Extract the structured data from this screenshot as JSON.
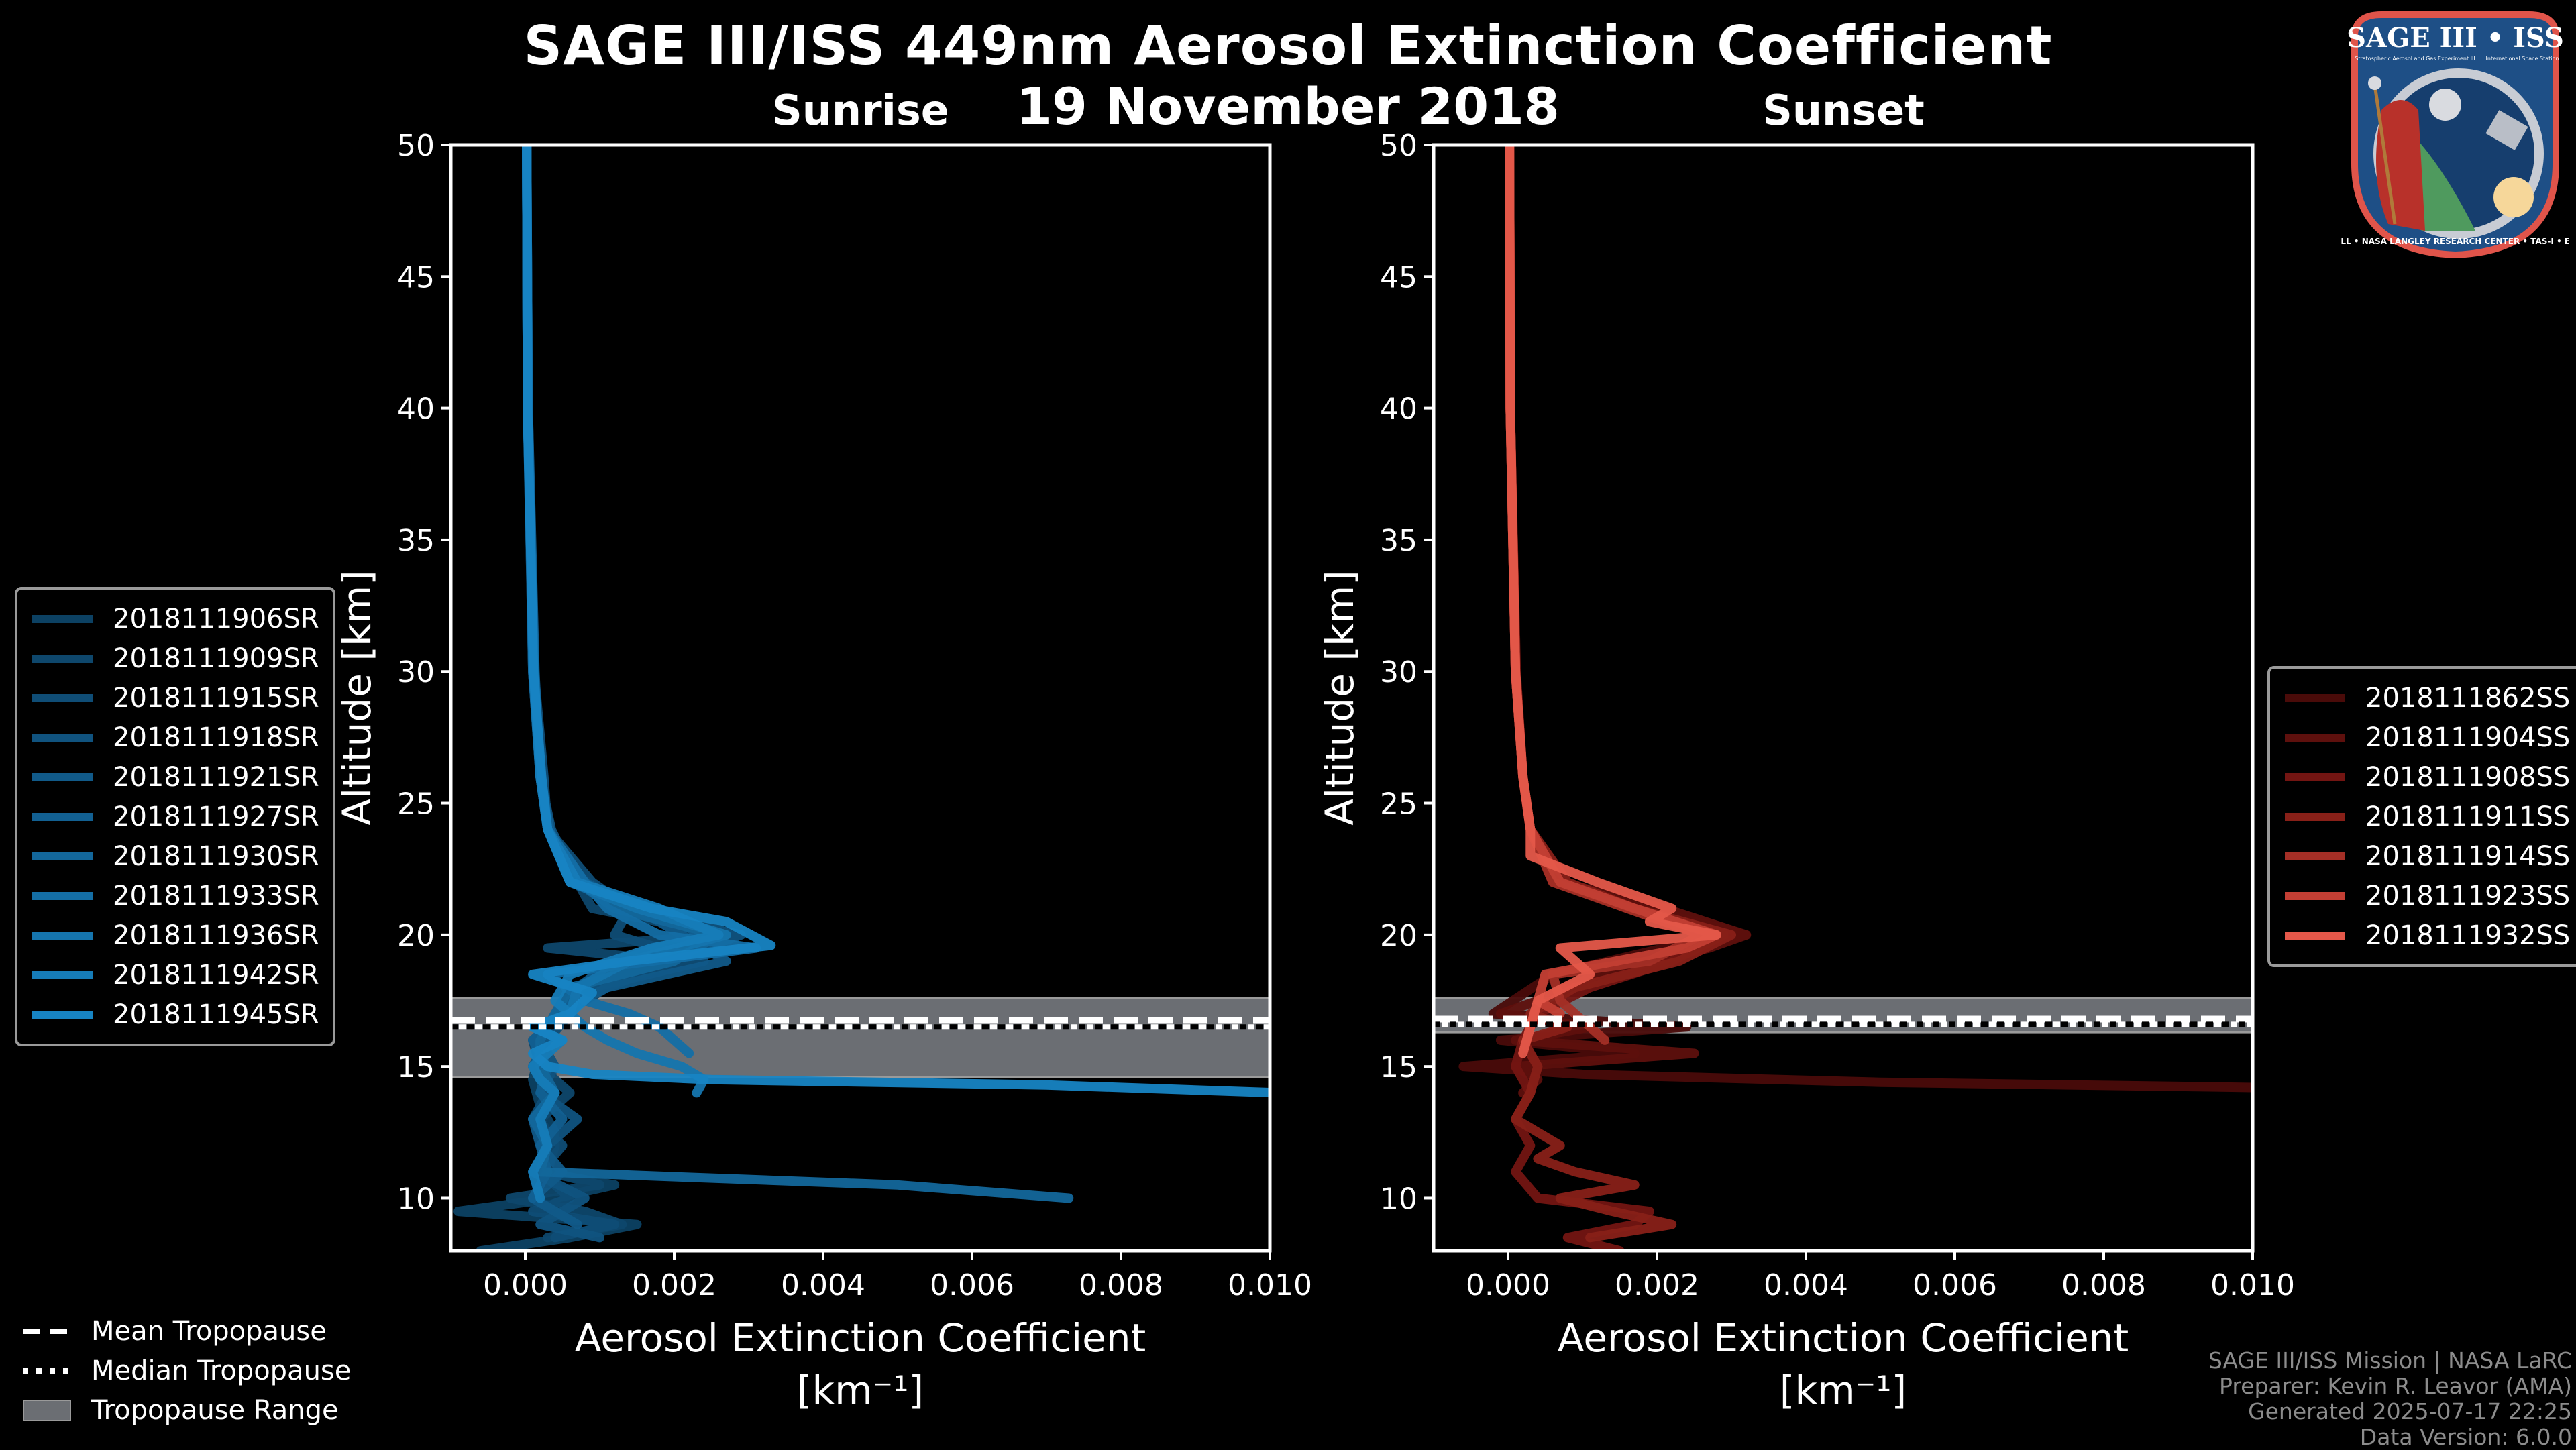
{
  "header": {
    "title": "SAGE III/ISS 449nm Aerosol Extinction Coefficient",
    "date": "19 November 2018"
  },
  "logo": {
    "title": "SAGE III • ISS",
    "subtitle_left": "Stratospheric Aerosol and Gas Experiment III",
    "subtitle_right": "International Space Station",
    "ring_text": "BALL • NASA LANGLEY RESEARCH CENTER • TAS-I • ESA",
    "colors": {
      "border": "#e0544a",
      "field": "#1e4f86",
      "ring": "#c8ccd4"
    }
  },
  "credits": [
    "SAGE III/ISS Mission | NASA LaRC",
    "Preparer: Kevin R. Leavor (AMA)",
    "Generated 2025-07-17 22:25",
    "Data Version: 6.0.0"
  ],
  "tropopause_legend": [
    {
      "label": "Mean Tropopause",
      "style": "dashed"
    },
    {
      "label": "Median Tropopause",
      "style": "dotted"
    },
    {
      "label": "Tropopause Range",
      "style": "band"
    }
  ],
  "chart_data": [
    {
      "type": "line",
      "title": "Sunrise",
      "xlabel": "Aerosol Extinction Coefficient",
      "xlabel_units": "[km⁻¹]",
      "ylabel": "Altitude [km]",
      "xlim": [
        -0.001,
        0.01
      ],
      "ylim": [
        8,
        50
      ],
      "xticks": [
        0.0,
        0.002,
        0.004,
        0.006,
        0.008,
        0.01
      ],
      "xtick_labels": [
        "0.000",
        "0.002",
        "0.004",
        "0.006",
        "0.008",
        "0.010"
      ],
      "yticks": [
        10,
        15,
        20,
        25,
        30,
        35,
        40,
        45,
        50
      ],
      "ytick_labels": [
        "10",
        "15",
        "20",
        "25",
        "30",
        "35",
        "40",
        "45",
        "50"
      ],
      "grid": false,
      "legend_position": "left-outside",
      "tropopause": {
        "mean": 16.75,
        "median": 16.5,
        "range": [
          14.6,
          17.6
        ]
      },
      "series": [
        {
          "name": "2018111906SR",
          "color": "#0c4163",
          "y": [
            50,
            40,
            30,
            26,
            24,
            22.5,
            21.5,
            20.5,
            19.5,
            18.5,
            17.5,
            16.5,
            15.5,
            14.5,
            13.5,
            12.5,
            11.5,
            11,
            10.5,
            10,
            9.5,
            9,
            8.5,
            8
          ],
          "x": [
            2e-05,
            3e-05,
            0.00012,
            0.0002,
            0.0003,
            0.0006,
            0.0011,
            0.0018,
            0.0024,
            0.0012,
            0.0005,
            0.0003,
            0.0002,
            0.0001,
            0.0002,
            0.0004,
            0.0003,
            0.0002,
            0.0012,
            0.0004,
            -0.0009,
            0.0015,
            0.0006,
            -0.0006
          ]
        },
        {
          "name": "2018111909SR",
          "color": "#0e476c",
          "y": [
            50,
            40,
            30,
            26,
            24,
            22.5,
            21,
            20,
            19.5,
            19,
            18,
            17,
            16,
            15,
            14,
            13,
            12,
            11,
            10.5,
            10,
            9.5,
            9,
            8.5
          ],
          "x": [
            2e-05,
            3e-05,
            0.0001,
            0.0002,
            0.00032,
            0.0006,
            0.0009,
            0.0027,
            0.0003,
            0.002,
            0.0011,
            0.0005,
            0.0001,
            0.0002,
            0.0006,
            0.0002,
            0.0004,
            0.0003,
            0.001,
            -0.0002,
            0.0008,
            0.0013,
            0.0003
          ]
        },
        {
          "name": "2018111915SR",
          "color": "#0f4d76",
          "y": [
            50,
            40,
            30,
            26,
            24,
            22,
            21,
            20,
            19,
            18,
            17,
            16,
            15,
            14,
            13,
            12,
            11,
            10,
            9.5,
            9,
            8.5
          ],
          "x": [
            2e-05,
            4e-05,
            0.00012,
            0.00025,
            0.0003,
            0.0009,
            0.0014,
            0.0012,
            0.0024,
            0.0009,
            0.0006,
            0.0003,
            0.0001,
            0.0003,
            0.0001,
            0.0005,
            0.0002,
            0.0006,
            0.0001,
            0.0012,
            0.0004
          ]
        },
        {
          "name": "2018111918SR",
          "color": "#10537f",
          "y": [
            50,
            40,
            30,
            26,
            24,
            22,
            21,
            20,
            19,
            18,
            17,
            16,
            15,
            14,
            13,
            12,
            11,
            10,
            9,
            8.5
          ],
          "x": [
            2e-05,
            3e-05,
            0.0001,
            0.0002,
            0.00035,
            0.0007,
            0.0013,
            0.0029,
            0.0019,
            0.0008,
            0.0005,
            0.0002,
            0.0004,
            0.0002,
            0.0007,
            0.0003,
            0.0001,
            0.0008,
            0.0002,
            0.001
          ]
        },
        {
          "name": "2018111921SR",
          "color": "#115a89",
          "y": [
            50,
            40,
            30,
            26,
            24,
            22,
            21,
            20,
            19,
            18,
            17,
            16,
            15,
            14,
            13,
            12,
            11,
            10,
            9
          ],
          "x": [
            2e-05,
            3e-05,
            0.00011,
            0.00022,
            0.0003,
            0.0008,
            0.0015,
            0.0021,
            0.0027,
            0.0011,
            0.0004,
            0.0003,
            0.0001,
            0.0004,
            0.0001,
            0.0002,
            0.0005,
            0.0001,
            0.0007
          ]
        },
        {
          "name": "2018111927SR",
          "color": "#126092",
          "y": [
            50,
            40,
            30,
            26,
            24,
            22,
            21,
            20,
            19,
            18,
            17,
            16,
            15,
            14,
            13,
            12,
            11,
            10
          ],
          "x": [
            2e-05,
            4e-05,
            0.00013,
            0.0002,
            0.00033,
            0.0006,
            0.0016,
            0.0024,
            0.0012,
            0.0007,
            0.0005,
            0.0001,
            0.0003,
            0.0002,
            0.0005,
            0.0002,
            0.0003,
            0.0001
          ]
        },
        {
          "name": "2018111930SR",
          "color": "#13679b",
          "y": [
            50,
            40,
            30,
            26,
            24,
            22,
            21,
            20,
            19,
            18,
            17,
            16,
            15,
            14,
            13,
            12,
            11,
            10.5,
            10
          ],
          "x": [
            2e-05,
            3e-05,
            0.00012,
            0.00021,
            0.0003,
            0.0007,
            0.0012,
            0.0026,
            0.002,
            0.0006,
            0.0004,
            0.0002,
            0.0002,
            0.0004,
            0.0001,
            0.0003,
            0.0002,
            0.005,
            0.0073
          ]
        },
        {
          "name": "2018111933SR",
          "color": "#146ea5",
          "y": [
            50,
            40,
            30,
            26,
            24,
            22,
            21,
            20,
            19.5,
            18.5,
            17.5,
            17,
            16.5,
            16,
            15.5
          ],
          "x": [
            2e-05,
            4e-05,
            0.0001,
            0.0002,
            0.0003,
            0.0008,
            0.0011,
            0.0018,
            0.0031,
            0.0003,
            0.0008,
            0.0014,
            0.0018,
            0.002,
            0.0022
          ]
        },
        {
          "name": "2018111936SR",
          "color": "#1575ae",
          "y": [
            50,
            40,
            30,
            26,
            24,
            22,
            21,
            20,
            19,
            18,
            17,
            16.5,
            16,
            15.5,
            15,
            14.5,
            14
          ],
          "x": [
            2e-05,
            3e-05,
            0.00012,
            0.0002,
            0.0003,
            0.0006,
            0.0015,
            0.0027,
            0.0014,
            0.0007,
            0.0006,
            0.0008,
            0.0011,
            0.0015,
            0.0021,
            0.0024,
            0.0023
          ]
        },
        {
          "name": "2018111942SR",
          "color": "#167cb8",
          "y": [
            50,
            40,
            30,
            26,
            24,
            22,
            21,
            20,
            19.5,
            18.5,
            17.5,
            17,
            16.5,
            16,
            15.5,
            15,
            14.5,
            14,
            13,
            12,
            11,
            10
          ],
          "x": [
            2e-05,
            3e-05,
            0.00011,
            0.0002,
            0.0003,
            0.0007,
            0.0018,
            0.0026,
            0.0017,
            0.0006,
            0.0004,
            0.0006,
            0.0001,
            0.0005,
            0.0003,
            0.0001,
            0.0002,
            0.0004,
            0.0002,
            0.0003,
            0.0001,
            0.0002
          ]
        },
        {
          "name": "2018111945SR",
          "color": "#1784c3",
          "y": [
            50,
            40,
            30,
            26,
            24,
            22,
            21,
            20.5,
            19.6,
            19,
            18.5,
            17.8,
            17,
            16.5,
            16,
            15.5,
            15,
            14.7,
            14.5,
            14.3,
            14
          ],
          "x": [
            2e-05,
            3e-05,
            0.00011,
            0.00022,
            0.0003,
            0.0006,
            0.0017,
            0.0027,
            0.0033,
            0.0014,
            0.0001,
            0.0009,
            0.0006,
            0.0001,
            0.0005,
            0.0001,
            0.0003,
            0.0009,
            0.0025,
            0.007,
            0.0101
          ]
        }
      ]
    },
    {
      "type": "line",
      "title": "Sunset",
      "xlabel": "Aerosol Extinction Coefficient",
      "xlabel_units": "[km⁻¹]",
      "ylabel": "Altitude [km]",
      "xlim": [
        -0.001,
        0.01
      ],
      "ylim": [
        8,
        50
      ],
      "xticks": [
        0.0,
        0.002,
        0.004,
        0.006,
        0.008,
        0.01
      ],
      "xtick_labels": [
        "0.000",
        "0.002",
        "0.004",
        "0.006",
        "0.008",
        "0.010"
      ],
      "yticks": [
        10,
        15,
        20,
        25,
        30,
        35,
        40,
        45,
        50
      ],
      "ytick_labels": [
        "10",
        "15",
        "20",
        "25",
        "30",
        "35",
        "40",
        "45",
        "50"
      ],
      "grid": false,
      "legend_position": "right-outside",
      "tropopause": {
        "mean": 16.8,
        "median": 16.6,
        "range": [
          16.3,
          17.6
        ]
      },
      "series": [
        {
          "name": "2018111862SS",
          "color": "#4a0b09",
          "y": [
            50,
            40,
            30,
            26,
            24,
            22,
            21,
            20,
            19.5,
            18.5,
            17,
            16.5,
            16,
            15.5,
            15,
            14.7,
            14.4,
            14.2
          ],
          "x": [
            2e-05,
            3e-05,
            0.0001,
            0.0002,
            0.0003,
            0.0006,
            0.0018,
            0.0032,
            0.0021,
            0.0006,
            -0.0002,
            0.0024,
            -0.0001,
            0.0017,
            -0.0006,
            0.001,
            0.005,
            0.0101
          ]
        },
        {
          "name": "2018111904SS",
          "color": "#5e100d",
          "y": [
            50,
            40,
            30,
            26,
            24,
            22,
            21,
            20,
            19.5,
            18.5,
            17.5,
            17,
            16.5,
            16,
            15.5,
            15,
            14.5,
            14
          ],
          "x": [
            2e-05,
            3e-05,
            0.0001,
            0.0002,
            0.0003,
            0.0007,
            0.0021,
            0.0032,
            0.0027,
            0.0012,
            0.0004,
            -0.0001,
            0.0011,
            0.0001,
            0.0025,
            0.0001,
            0.0004,
            0.0002
          ]
        },
        {
          "name": "2018111908SS",
          "color": "#731512",
          "y": [
            50,
            40,
            30,
            26,
            24,
            22,
            21,
            20,
            19,
            18,
            17,
            16,
            15,
            14,
            13,
            12,
            11,
            10,
            9.5,
            9,
            8.5,
            8
          ],
          "x": [
            2e-05,
            3e-05,
            0.00011,
            0.0002,
            0.0003,
            0.0007,
            0.0016,
            0.0029,
            0.0022,
            0.0011,
            0.0004,
            0.0002,
            0.0001,
            0.0003,
            0.0001,
            0.0003,
            0.0001,
            0.0004,
            0.0019,
            0.0017,
            0.0008,
            0.0015
          ]
        },
        {
          "name": "2018111911SS",
          "color": "#882018",
          "y": [
            50,
            40,
            30,
            26,
            24,
            22,
            21,
            20,
            19,
            18,
            17,
            16.5,
            16,
            15,
            14,
            13,
            12,
            11.5,
            11,
            10.5,
            10,
            9.5,
            9,
            8.5
          ],
          "x": [
            2e-05,
            3e-05,
            0.0001,
            0.0002,
            0.0003,
            0.0008,
            0.0017,
            0.003,
            0.0023,
            0.0009,
            0.0003,
            0.0008,
            0.0002,
            0.0004,
            0.0003,
            0.0001,
            0.0007,
            0.0004,
            0.0009,
            0.0017,
            0.0007,
            0.0014,
            0.0022,
            0.0011
          ]
        },
        {
          "name": "2018111914SS",
          "color": "#a42f26",
          "y": [
            50,
            40,
            30,
            26,
            24,
            22,
            21,
            20,
            19,
            18.5,
            17.5,
            17,
            16.5,
            16
          ],
          "x": [
            2e-05,
            3e-05,
            0.0001,
            0.0002,
            0.0003,
            0.0006,
            0.0016,
            0.0026,
            0.0019,
            0.0006,
            0.0007,
            0.0009,
            0.0011,
            0.0013
          ]
        },
        {
          "name": "2018111923SS",
          "color": "#c33f34",
          "y": [
            50,
            40,
            30,
            26,
            24,
            22,
            21,
            20,
            19.5,
            18.5,
            17.5,
            17
          ],
          "x": [
            2e-05,
            3e-05,
            0.0001,
            0.0002,
            0.0003,
            0.0007,
            0.0017,
            0.0028,
            0.0024,
            0.0005,
            0.0004,
            0.0007
          ]
        },
        {
          "name": "2018111932SS",
          "color": "#e5584a",
          "y": [
            50,
            40,
            30,
            26,
            24,
            23,
            22,
            21,
            20.5,
            20,
            19.5,
            18.5,
            17.5,
            16.5,
            15.5
          ],
          "x": [
            2e-05,
            3e-05,
            0.0001,
            0.0002,
            0.0003,
            0.0003,
            0.0012,
            0.0022,
            0.0019,
            0.0028,
            0.0007,
            0.0011,
            0.0004,
            0.0003,
            0.0002
          ]
        }
      ]
    }
  ]
}
